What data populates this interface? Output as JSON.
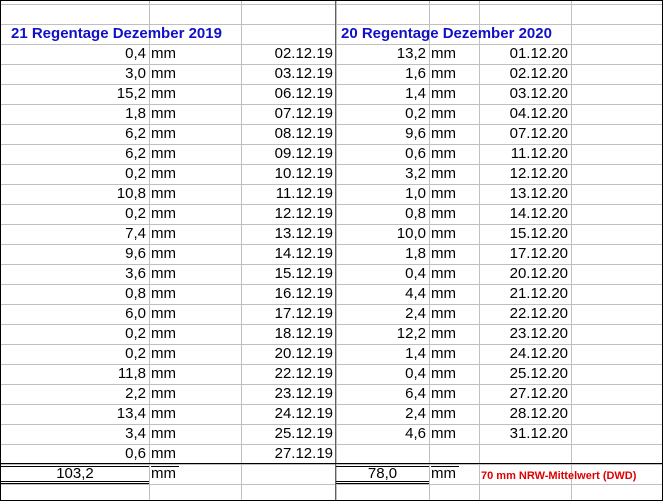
{
  "left": {
    "title": "21 Regentage Dezember 2019",
    "rows": [
      [
        "0,4",
        "mm",
        "02.12.19"
      ],
      [
        "3,0",
        "mm",
        "03.12.19"
      ],
      [
        "15,2",
        "mm",
        "06.12.19"
      ],
      [
        "1,8",
        "mm",
        "07.12.19"
      ],
      [
        "6,2",
        "mm",
        "08.12.19"
      ],
      [
        "6,2",
        "mm",
        "09.12.19"
      ],
      [
        "0,2",
        "mm",
        "10.12.19"
      ],
      [
        "10,8",
        "mm",
        "11.12.19"
      ],
      [
        "0,2",
        "mm",
        "12.12.19"
      ],
      [
        "7,4",
        "mm",
        "13.12.19"
      ],
      [
        "9,6",
        "mm",
        "14.12.19"
      ],
      [
        "3,6",
        "mm",
        "15.12.19"
      ],
      [
        "0,8",
        "mm",
        "16.12.19"
      ],
      [
        "6,0",
        "mm",
        "17.12.19"
      ],
      [
        "0,2",
        "mm",
        "18.12.19"
      ],
      [
        "0,2",
        "mm",
        "20.12.19"
      ],
      [
        "11,8",
        "mm",
        "22.12.19"
      ],
      [
        "2,2",
        "mm",
        "23.12.19"
      ],
      [
        "13,4",
        "mm",
        "24.12.19"
      ],
      [
        "3,4",
        "mm",
        "25.12.19"
      ],
      [
        "0,6",
        "mm",
        "27.12.19"
      ]
    ],
    "total": [
      "103,2",
      "mm"
    ]
  },
  "right": {
    "title": "20 Regentage Dezember 2020",
    "rows": [
      [
        "13,2",
        "mm",
        "01.12.20"
      ],
      [
        "1,6",
        "mm",
        "02.12.20"
      ],
      [
        "1,4",
        "mm",
        "03.12.20"
      ],
      [
        "0,2",
        "mm",
        "04.12.20"
      ],
      [
        "9,6",
        "mm",
        "07.12.20"
      ],
      [
        "0,6",
        "mm",
        "11.12.20"
      ],
      [
        "3,2",
        "mm",
        "12.12.20"
      ],
      [
        "1,0",
        "mm",
        "13.12.20"
      ],
      [
        "0,8",
        "mm",
        "14.12.20"
      ],
      [
        "10,0",
        "mm",
        "15.12.20"
      ],
      [
        "1,8",
        "mm",
        "17.12.20"
      ],
      [
        "0,4",
        "mm",
        "20.12.20"
      ],
      [
        "4,4",
        "mm",
        "21.12.20"
      ],
      [
        "2,4",
        "mm",
        "22.12.20"
      ],
      [
        "12,2",
        "mm",
        "23.12.20"
      ],
      [
        "1,4",
        "mm",
        "24.12.20"
      ],
      [
        "0,4",
        "mm",
        "25.12.20"
      ],
      [
        "6,4",
        "mm",
        "27.12.20"
      ],
      [
        "2,4",
        "mm",
        "28.12.20"
      ],
      [
        "4,6",
        "mm",
        "31.12.20"
      ]
    ],
    "total": [
      "78,0",
      "mm"
    ]
  },
  "note": "70 mm NRW-Mittelwert (DWD)"
}
